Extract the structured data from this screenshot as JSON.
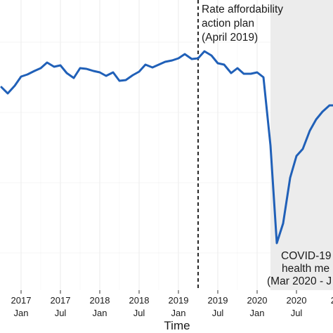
{
  "chart_data": {
    "type": "line",
    "title": "",
    "xlabel": "Time",
    "ylabel": "",
    "line_color": "#2060b8",
    "shade_color": "#ececec",
    "grid": true,
    "x_tick_labels": [
      {
        "t": 2017.0,
        "year": "2017",
        "month": "Jan"
      },
      {
        "t": 2017.5,
        "year": "2017",
        "month": "Jul"
      },
      {
        "t": 2018.0,
        "year": "2018",
        "month": "Jan"
      },
      {
        "t": 2018.5,
        "year": "2018",
        "month": "Jul"
      },
      {
        "t": 2019.0,
        "year": "2019",
        "month": "Jan"
      },
      {
        "t": 2019.5,
        "year": "2019",
        "month": "Jul"
      },
      {
        "t": 2020.0,
        "year": "2020",
        "month": "Jan"
      },
      {
        "t": 2020.5,
        "year": "2020",
        "month": "Jul"
      },
      {
        "t": 2021.0,
        "year": "20",
        "month": "J"
      }
    ],
    "vline": {
      "t": 2019.25,
      "label_lines": [
        "Rate affordability",
        "action plan",
        "(April 2019)"
      ]
    },
    "shaded_region": {
      "start": 2020.17,
      "label_lines": [
        "COVID-19",
        "health me",
        "(Mar 2020 - J"
      ]
    },
    "series": [
      {
        "values": [
          [
            2016.75,
            124
          ],
          [
            2016.83,
            133
          ],
          [
            2016.92,
            122
          ],
          [
            2017.0,
            109
          ],
          [
            2017.08,
            106
          ],
          [
            2017.17,
            101
          ],
          [
            2017.25,
            97
          ],
          [
            2017.33,
            89
          ],
          [
            2017.42,
            95
          ],
          [
            2017.5,
            93
          ],
          [
            2017.58,
            104
          ],
          [
            2017.67,
            111
          ],
          [
            2017.75,
            97
          ],
          [
            2017.83,
            98
          ],
          [
            2017.92,
            101
          ],
          [
            2018.0,
            103
          ],
          [
            2018.08,
            108
          ],
          [
            2018.17,
            103
          ],
          [
            2018.25,
            115
          ],
          [
            2018.33,
            114
          ],
          [
            2018.42,
            107
          ],
          [
            2018.5,
            102
          ],
          [
            2018.58,
            92
          ],
          [
            2018.67,
            96
          ],
          [
            2018.75,
            92
          ],
          [
            2018.83,
            88
          ],
          [
            2018.92,
            86
          ],
          [
            2019.0,
            83
          ],
          [
            2019.08,
            77
          ],
          [
            2019.17,
            84
          ],
          [
            2019.25,
            83
          ],
          [
            2019.33,
            73
          ],
          [
            2019.42,
            79
          ],
          [
            2019.5,
            90
          ],
          [
            2019.58,
            92
          ],
          [
            2019.67,
            104
          ],
          [
            2019.75,
            97
          ],
          [
            2019.83,
            105
          ],
          [
            2019.92,
            105
          ],
          [
            2020.0,
            103
          ],
          [
            2020.08,
            110
          ],
          [
            2020.17,
            207
          ],
          [
            2020.25,
            346
          ],
          [
            2020.33,
            318
          ],
          [
            2020.42,
            253
          ],
          [
            2020.5,
            222
          ],
          [
            2020.58,
            212
          ],
          [
            2020.67,
            186
          ],
          [
            2020.75,
            170
          ],
          [
            2020.83,
            159
          ],
          [
            2020.92,
            150
          ],
          [
            2021.0,
            150
          ],
          [
            2021.08,
            146
          ]
        ]
      }
    ]
  }
}
